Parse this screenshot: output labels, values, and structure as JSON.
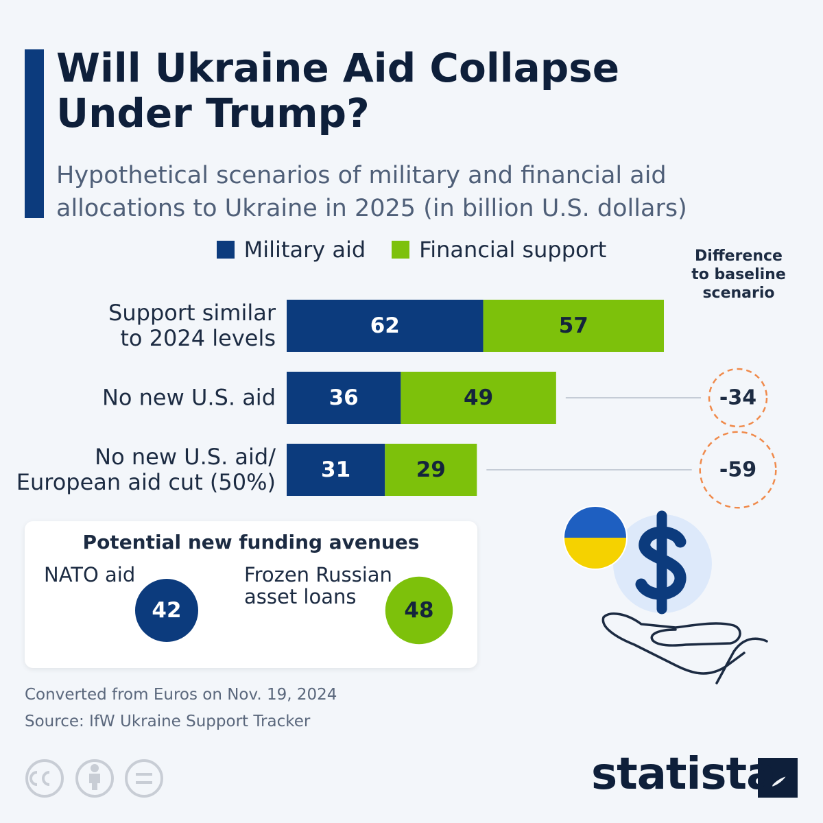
{
  "chart_data": {
    "type": "bar",
    "orientation": "horizontal",
    "stacked": true,
    "title": "Will Ukraine Aid Collapse\nUnder Trump?",
    "subtitle": "Hypothetical scenarios of military and financial aid\nallocations to Ukraine in 2025 (in billion U.S. dollars)",
    "categories": [
      "Support similar\nto 2024 levels",
      "No new U.S. aid",
      "No new U.S. aid/\nEuropean aid cut (50%)"
    ],
    "series": [
      {
        "name": "Military aid",
        "color": "#0c3b7d",
        "label_color": "#ffffff",
        "values": [
          62,
          36,
          31
        ]
      },
      {
        "name": "Financial support",
        "color": "#7dc10b",
        "label_color": "#14243c",
        "values": [
          57,
          49,
          29
        ]
      }
    ],
    "difference": {
      "title": "Difference\nto baseline\nscenario",
      "color": "#f08a4b",
      "values": [
        null,
        -34,
        -59
      ]
    }
  },
  "funding_avenues": {
    "title": "Potential new funding avenues",
    "items": [
      {
        "label": "NATO aid",
        "value": 42,
        "color": "#0c3b7d",
        "label_color": "#ffffff"
      },
      {
        "label": "Frozen Russian\nasset loans",
        "value": 48,
        "color": "#7dc10b",
        "label_color": "#14243c"
      }
    ]
  },
  "footer": {
    "note": "Converted from Euros on Nov. 19, 2024",
    "source": "Source: IfW Ukraine Support Tracker",
    "brand": "statista"
  }
}
